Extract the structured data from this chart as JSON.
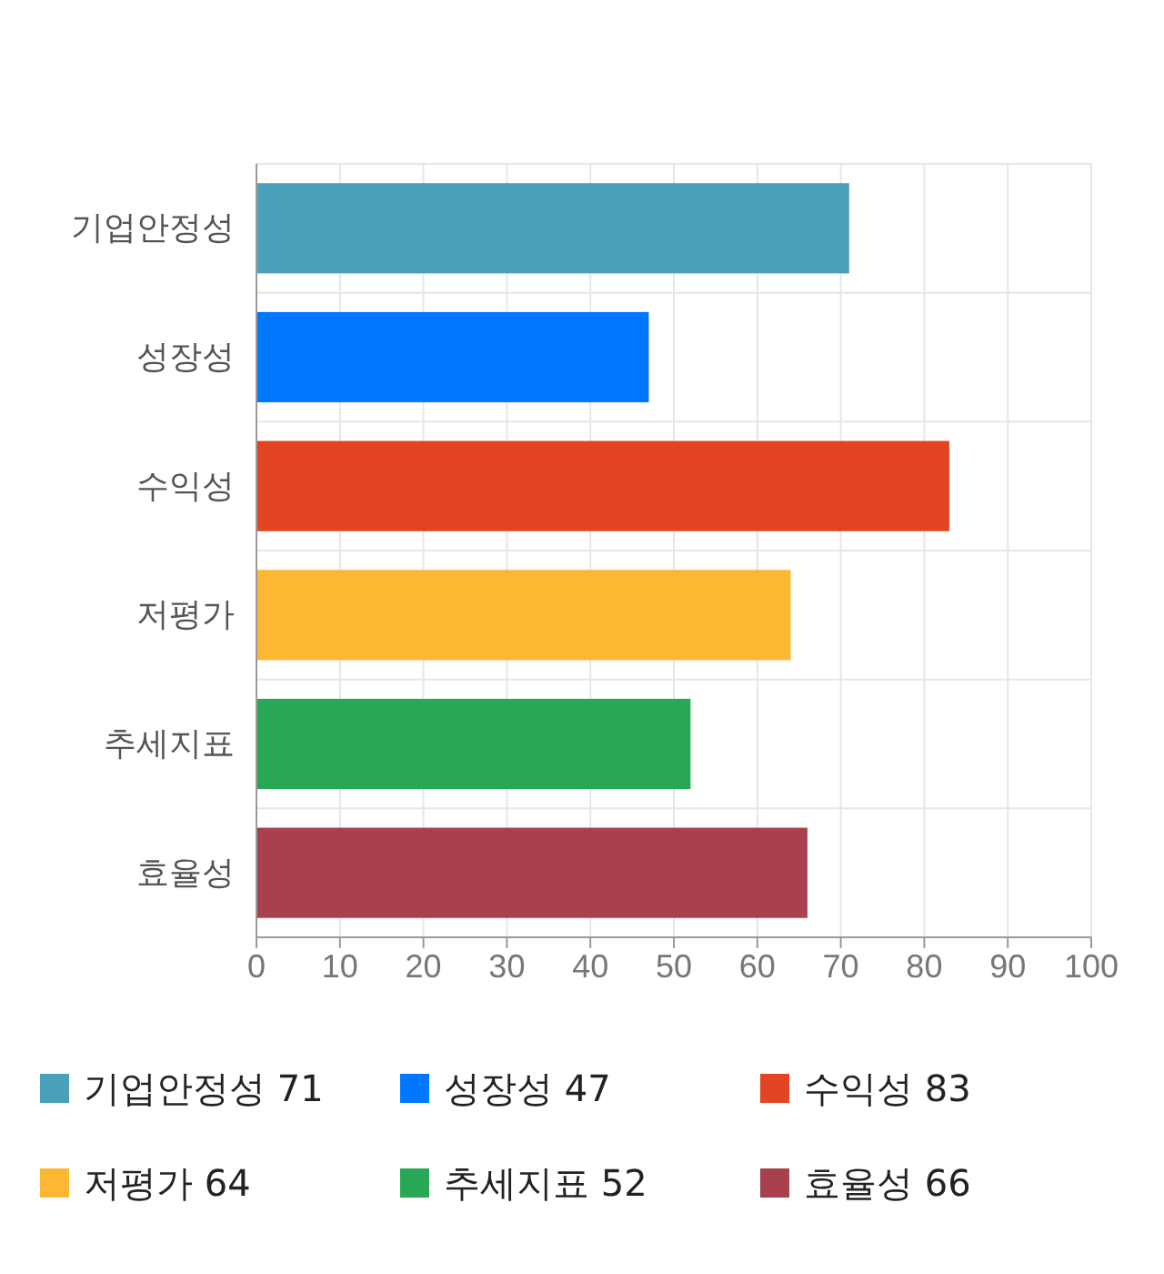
{
  "chart_data": {
    "type": "bar",
    "orientation": "horizontal",
    "categories": [
      "기업안정성",
      "성장성",
      "수익성",
      "저평가",
      "추세지표",
      "효율성"
    ],
    "series": [
      {
        "name": "기업안정성 71",
        "color": "#4aa0b8",
        "values": [
          71,
          null,
          null,
          null,
          null,
          null
        ]
      },
      {
        "name": "성장성 47",
        "color": "#0077ff",
        "values": [
          null,
          47,
          null,
          null,
          null,
          null
        ]
      },
      {
        "name": "수익성 83",
        "color": "#e24424",
        "values": [
          null,
          null,
          83,
          null,
          null,
          null
        ]
      },
      {
        "name": "저평가 64",
        "color": "#fdb833",
        "values": [
          null,
          null,
          null,
          64,
          null,
          null
        ]
      },
      {
        "name": "추세지표 52",
        "color": "#28a854",
        "values": [
          null,
          null,
          null,
          null,
          52,
          null
        ]
      },
      {
        "name": "효율성 66",
        "color": "#a8404e",
        "values": [
          null,
          null,
          null,
          null,
          null,
          66
        ]
      }
    ],
    "xlim": [
      0,
      100
    ],
    "xticks": [
      0,
      10,
      20,
      30,
      40,
      50,
      60,
      70,
      80,
      90,
      100
    ],
    "grid": true,
    "legend": "bottom"
  }
}
